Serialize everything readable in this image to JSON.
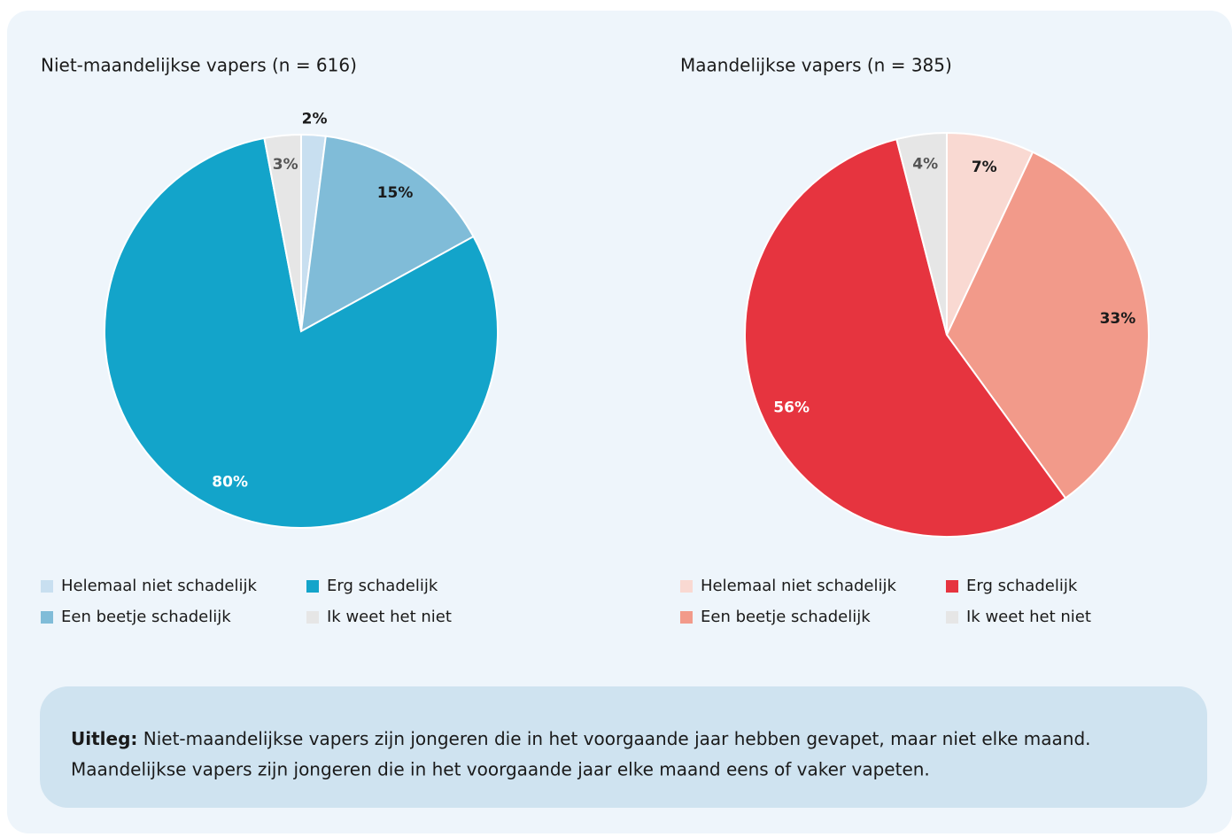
{
  "chart_data": [
    {
      "type": "pie",
      "title": "Niet-maandelijkse vapers (n = 616)",
      "categories": [
        "Helemaal niet schadelijk",
        "Een beetje schadelijk",
        "Erg schadelijk",
        "Ik weet het niet"
      ],
      "values": [
        2,
        15,
        80,
        3
      ],
      "value_labels": [
        "2%",
        "15%",
        "80%",
        "3%"
      ],
      "colors": [
        "#c8dff0",
        "#80bcd8",
        "#13a4ca",
        "#e6e6e6"
      ]
    },
    {
      "type": "pie",
      "title": "Maandelijkse vapers (n = 385)",
      "categories": [
        "Helemaal niet schadelijk",
        "Een beetje schadelijk",
        "Erg schadelijk",
        "Ik weet het niet"
      ],
      "values": [
        7,
        33,
        56,
        4
      ],
      "value_labels": [
        "7%",
        "33%",
        "56%",
        "4%"
      ],
      "colors": [
        "#f9d9d2",
        "#f29a8a",
        "#e6343f",
        "#e6e6e6"
      ]
    }
  ],
  "explanation": {
    "label": "Uitleg:",
    "lines": [
      "Niet-maandelijkse vapers zijn jongeren die in het voorgaande jaar hebben gevapet, maar niet elke maand.",
      "Maandelijkse vapers zijn jongeren die in het voorgaande jaar elke maand eens of vaker vapeten."
    ]
  }
}
